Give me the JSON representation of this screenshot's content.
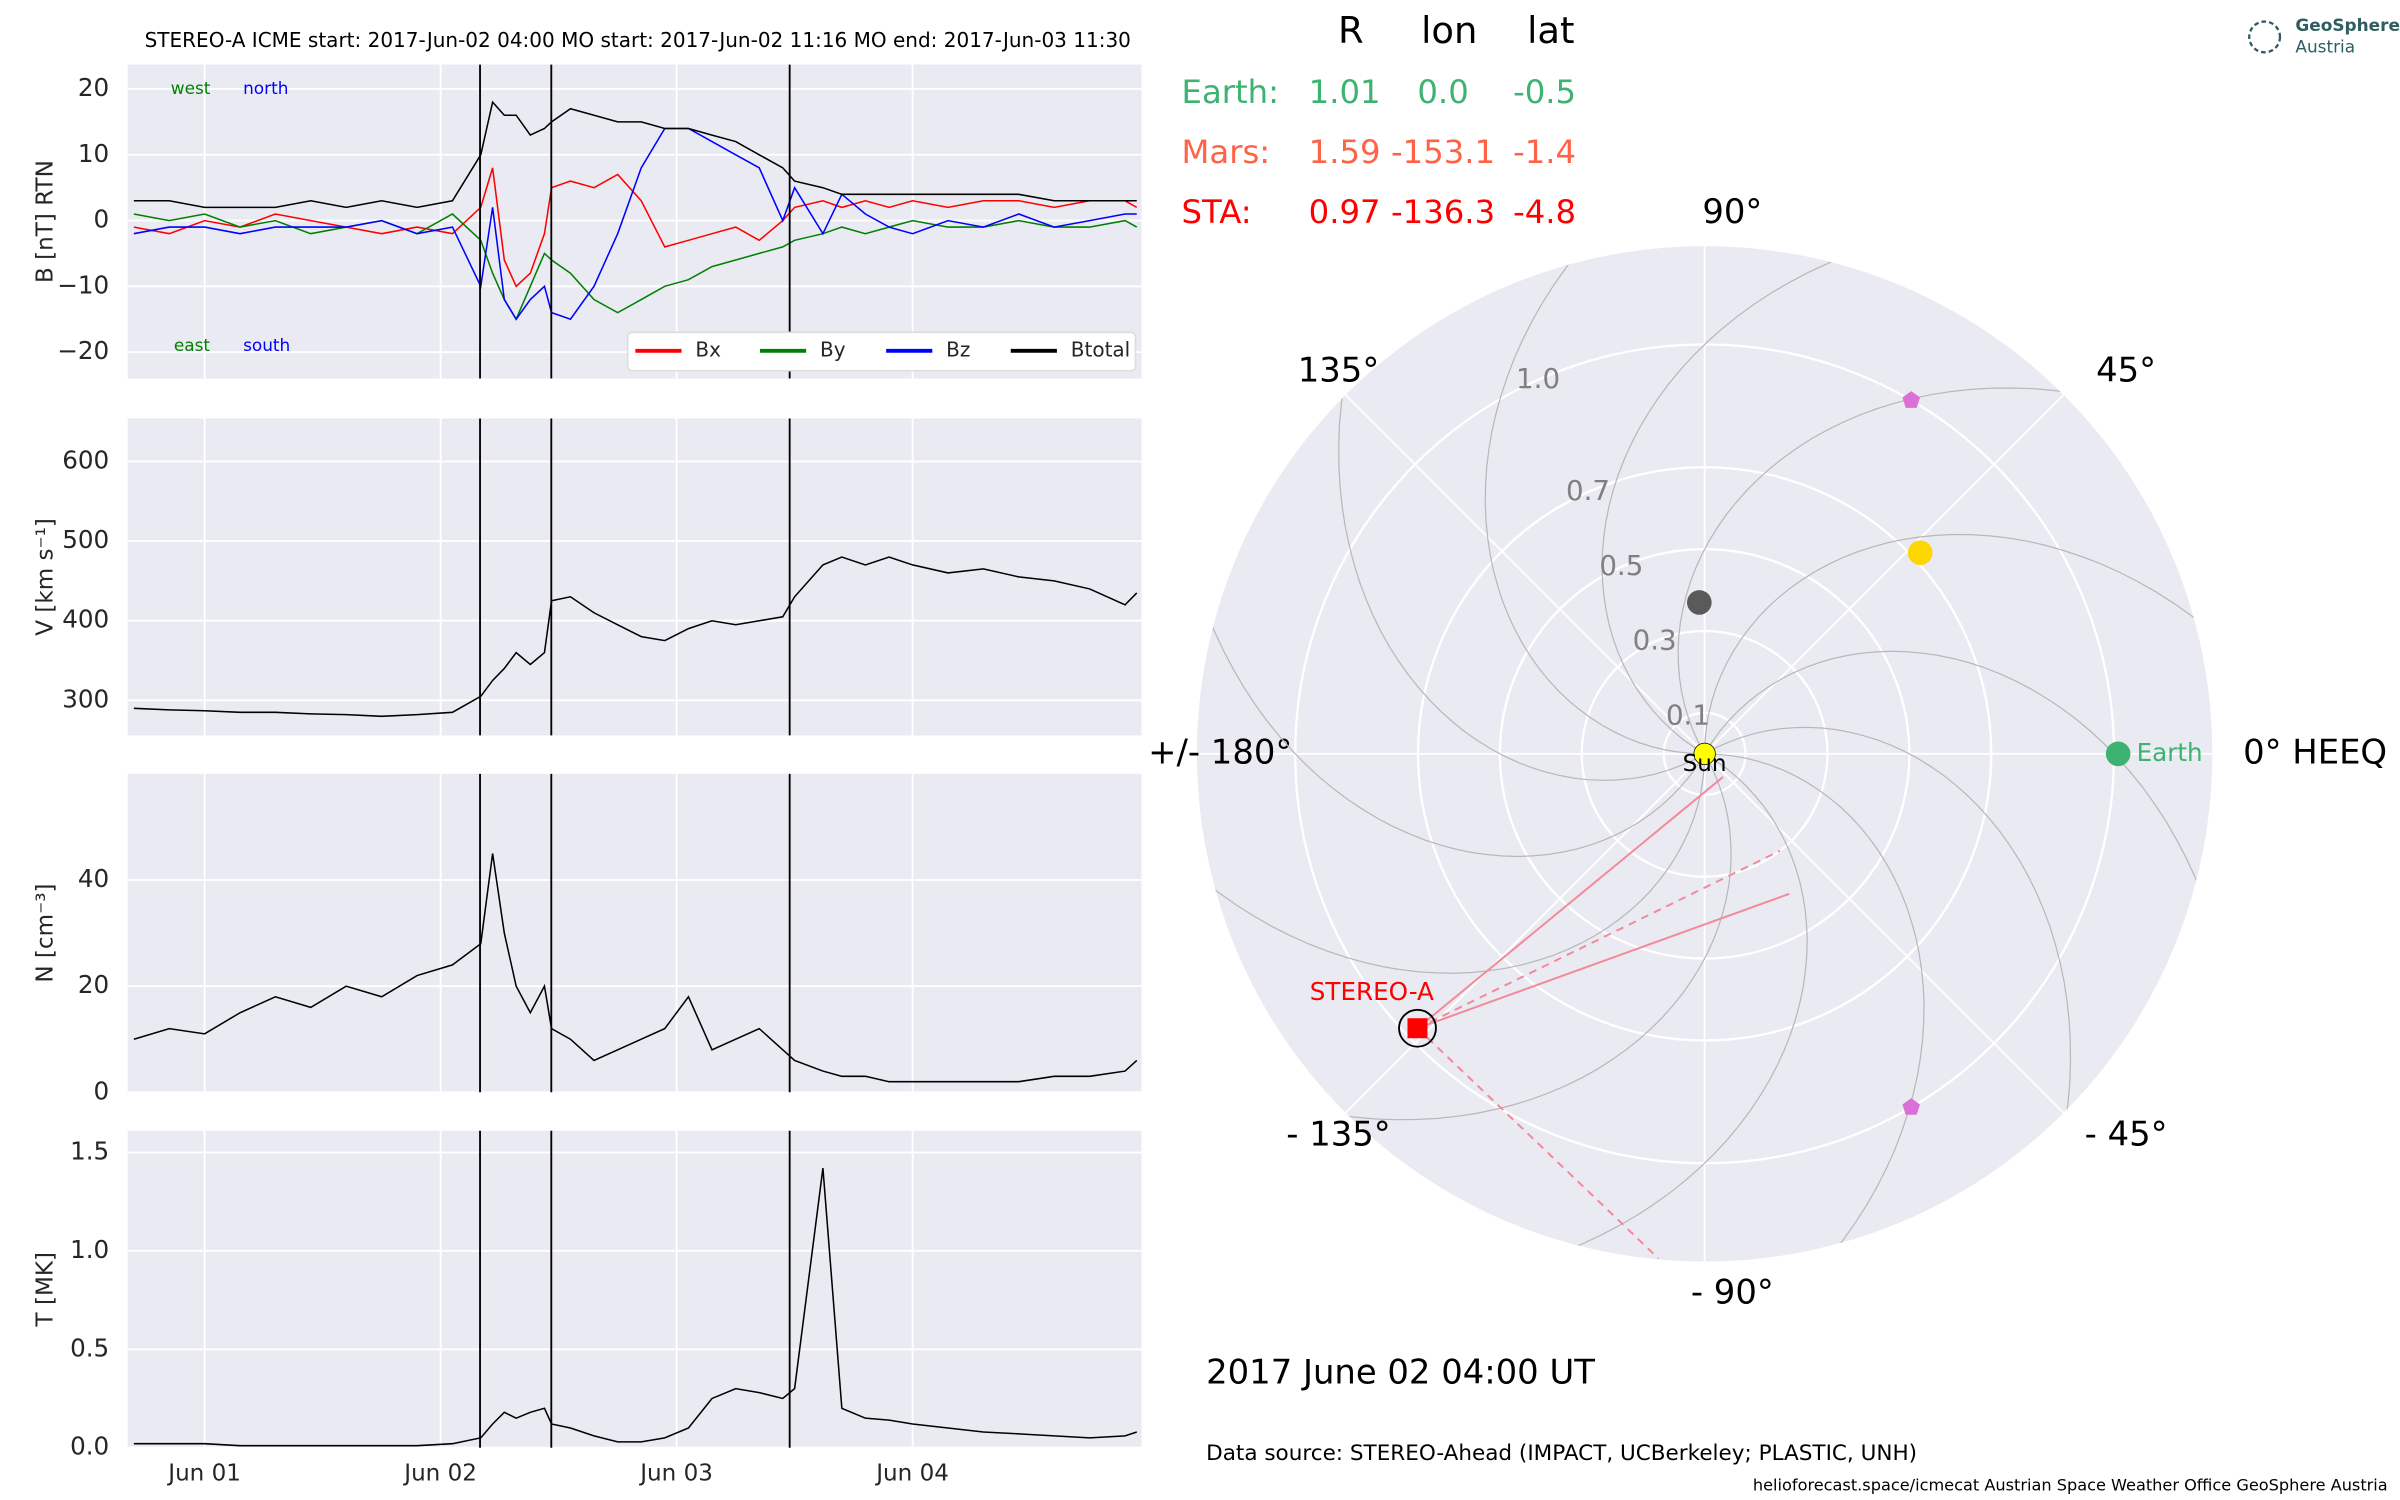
{
  "title": "STEREO-A    ICME start: 2017-Jun-02 04:00    MO start: 2017-Jun-02 11:16    MO end: 2017-Jun-03 11:30",
  "chart_data": [
    {
      "type": "line",
      "ylabel": "B [nT] RTN",
      "xlim": [
        0.674,
        4.97
      ],
      "xgrid": [
        1,
        2,
        3,
        4
      ],
      "ylim": [
        -24,
        23.7
      ],
      "yticks": [
        {
          "value": -20,
          "label": "−20"
        },
        {
          "value": -10,
          "label": "−10"
        },
        0,
        10,
        20
      ],
      "vlines": [
        2.167,
        2.469,
        3.479
      ],
      "x": [
        0.7,
        0.85,
        1.0,
        1.15,
        1.3,
        1.45,
        1.6,
        1.75,
        1.9,
        2.05,
        2.17,
        2.22,
        2.27,
        2.32,
        2.38,
        2.44,
        2.47,
        2.55,
        2.65,
        2.75,
        2.85,
        2.95,
        3.05,
        3.15,
        3.25,
        3.35,
        3.45,
        3.5,
        3.62,
        3.7,
        3.8,
        3.9,
        4.0,
        4.15,
        4.3,
        4.45,
        4.6,
        4.75,
        4.9,
        4.95
      ],
      "series": [
        {
          "name": "Bx",
          "color": "#ff0000",
          "values": [
            -1,
            -2,
            0,
            -1,
            1,
            0,
            -1,
            -2,
            -1,
            -2,
            2,
            8,
            -6,
            -10,
            -8,
            -2,
            5,
            6,
            5,
            7,
            3,
            -4,
            -3,
            -2,
            -1,
            -3,
            0,
            2,
            3,
            2,
            3,
            2,
            3,
            2,
            3,
            3,
            2,
            3,
            3,
            2
          ]
        },
        {
          "name": "By",
          "color": "#008000",
          "values": [
            1,
            0,
            1,
            -1,
            0,
            -2,
            -1,
            0,
            -2,
            1,
            -3,
            -8,
            -12,
            -15,
            -10,
            -5,
            -6,
            -8,
            -12,
            -14,
            -12,
            -10,
            -9,
            -7,
            -6,
            -5,
            -4,
            -3,
            -2,
            -1,
            -2,
            -1,
            0,
            -1,
            -1,
            0,
            -1,
            -1,
            0,
            -1
          ]
        },
        {
          "name": "Bz",
          "color": "#0000ff",
          "values": [
            -2,
            -1,
            -1,
            -2,
            -1,
            -1,
            -1,
            0,
            -2,
            -1,
            -10,
            2,
            -12,
            -15,
            -12,
            -10,
            -14,
            -15,
            -10,
            -2,
            8,
            14,
            14,
            12,
            10,
            8,
            0,
            5,
            -2,
            4,
            1,
            -1,
            -2,
            0,
            -1,
            1,
            -1,
            0,
            1,
            1
          ]
        },
        {
          "name": "Btotal",
          "color": "#000000",
          "values": [
            3,
            3,
            2,
            2,
            2,
            3,
            2,
            3,
            2,
            3,
            10,
            18,
            16,
            16,
            13,
            14,
            15,
            17,
            16,
            15,
            15,
            14,
            14,
            13,
            12,
            10,
            8,
            6,
            5,
            4,
            4,
            4,
            4,
            4,
            4,
            4,
            3,
            3,
            3,
            3
          ]
        }
      ],
      "legend": "lower right",
      "annotations": [
        {
          "text": "west",
          "color": "#008000"
        },
        {
          "text": "north",
          "color": "#0000ff"
        },
        {
          "text": "east",
          "color": "#008000"
        },
        {
          "text": "south",
          "color": "#0000ff"
        }
      ]
    },
    {
      "type": "line",
      "ylabel": "V [km s⁻¹]",
      "xlim": [
        0.674,
        4.97
      ],
      "xgrid": [
        1,
        2,
        3,
        4
      ],
      "ylim": [
        256,
        654
      ],
      "yticks": [
        300,
        400,
        500,
        600
      ],
      "vlines": [
        2.167,
        2.469,
        3.479
      ],
      "x": [
        0.7,
        0.85,
        1.0,
        1.15,
        1.3,
        1.45,
        1.6,
        1.75,
        1.9,
        2.05,
        2.17,
        2.22,
        2.27,
        2.32,
        2.38,
        2.44,
        2.47,
        2.55,
        2.65,
        2.75,
        2.85,
        2.95,
        3.05,
        3.15,
        3.25,
        3.35,
        3.45,
        3.5,
        3.62,
        3.7,
        3.8,
        3.9,
        4.0,
        4.15,
        4.3,
        4.45,
        4.6,
        4.75,
        4.9,
        4.95
      ],
      "series": [
        {
          "color": "#000000",
          "values": [
            290,
            288,
            287,
            285,
            285,
            283,
            282,
            280,
            282,
            285,
            305,
            325,
            340,
            360,
            345,
            360,
            425,
            430,
            410,
            395,
            380,
            375,
            390,
            400,
            395,
            400,
            405,
            430,
            470,
            480,
            470,
            480,
            470,
            460,
            465,
            455,
            450,
            440,
            420,
            435
          ]
        }
      ]
    },
    {
      "type": "line",
      "ylabel": "N [cm⁻³]",
      "xlim": [
        0.674,
        4.97
      ],
      "xgrid": [
        1,
        2,
        3,
        4
      ],
      "ylim": [
        0,
        60
      ],
      "yticks": [
        0,
        20,
        40
      ],
      "vlines": [
        2.167,
        2.469,
        3.479
      ],
      "x": [
        0.7,
        0.85,
        1.0,
        1.15,
        1.3,
        1.45,
        1.6,
        1.75,
        1.9,
        2.05,
        2.17,
        2.22,
        2.27,
        2.32,
        2.38,
        2.44,
        2.47,
        2.55,
        2.65,
        2.75,
        2.85,
        2.95,
        3.05,
        3.15,
        3.25,
        3.35,
        3.45,
        3.5,
        3.62,
        3.7,
        3.8,
        3.9,
        4.0,
        4.15,
        4.3,
        4.45,
        4.6,
        4.75,
        4.9,
        4.95
      ],
      "series": [
        {
          "color": "#000000",
          "values": [
            10,
            12,
            11,
            15,
            18,
            16,
            20,
            18,
            22,
            24,
            28,
            45,
            30,
            20,
            15,
            20,
            12,
            10,
            6,
            8,
            10,
            12,
            18,
            8,
            10,
            12,
            8,
            6,
            4,
            3,
            3,
            2,
            2,
            2,
            2,
            2,
            3,
            3,
            4,
            6
          ]
        }
      ]
    },
    {
      "type": "line",
      "ylabel": "T [MK]",
      "xlim": [
        0.674,
        4.97
      ],
      "xticks": [
        {
          "value": 1,
          "label": "Jun 01"
        },
        {
          "value": 2,
          "label": "Jun 02"
        },
        {
          "value": 3,
          "label": "Jun 03"
        },
        {
          "value": 4,
          "label": "Jun 04"
        }
      ],
      "ylim": [
        0,
        1.61
      ],
      "yticks": [
        {
          "value": 0,
          "label": "0.0"
        },
        0.5,
        {
          "value": 1,
          "label": "1.0"
        },
        1.5
      ],
      "vlines": [
        2.167,
        2.469,
        3.479
      ],
      "x": [
        0.7,
        0.85,
        1.0,
        1.15,
        1.3,
        1.45,
        1.6,
        1.75,
        1.9,
        2.05,
        2.17,
        2.22,
        2.27,
        2.32,
        2.38,
        2.44,
        2.47,
        2.55,
        2.65,
        2.75,
        2.85,
        2.95,
        3.05,
        3.15,
        3.25,
        3.35,
        3.45,
        3.5,
        3.62,
        3.7,
        3.8,
        3.9,
        4.0,
        4.15,
        4.3,
        4.45,
        4.6,
        4.75,
        4.9,
        4.95
      ],
      "series": [
        {
          "color": "#000000",
          "values": [
            0.02,
            0.02,
            0.02,
            0.01,
            0.01,
            0.01,
            0.01,
            0.01,
            0.01,
            0.02,
            0.05,
            0.12,
            0.18,
            0.15,
            0.18,
            0.2,
            0.12,
            0.1,
            0.06,
            0.03,
            0.03,
            0.05,
            0.1,
            0.25,
            0.3,
            0.28,
            0.25,
            0.3,
            1.42,
            0.2,
            0.15,
            0.14,
            0.12,
            0.1,
            0.08,
            0.07,
            0.06,
            0.05,
            0.06,
            0.08
          ]
        }
      ]
    },
    {
      "type": "polar",
      "rlim": [
        0,
        1.24
      ],
      "rticks": [
        0.1,
        0.3,
        0.5,
        0.7,
        {
          "value": 1,
          "label": "1.0"
        }
      ],
      "thetaticks": [
        {
          "value": 0,
          "label": "0° HEEQ"
        },
        {
          "value": 45,
          "label": "45°"
        },
        {
          "value": 90,
          "label": "90°"
        },
        {
          "value": 135,
          "label": "135°"
        },
        {
          "value": 180,
          "label": "+/- 180°"
        },
        {
          "value": -135,
          "label": "- 135°"
        },
        {
          "value": -90,
          "label": "- 90°"
        },
        {
          "value": -45,
          "label": "- 45°"
        }
      ],
      "bodies": [
        {
          "r": 0.37,
          "lon": 92,
          "color": "#5a5a5a",
          "marker": "circle"
        },
        {
          "r": 0.72,
          "lon": 43,
          "color": "#ffd700",
          "marker": "circle"
        },
        {
          "name": "Earth",
          "r": 1.01,
          "lon": 0.0,
          "color": "#3cb371",
          "marker": "circle"
        },
        {
          "name": "STEREO-A",
          "r": 0.97,
          "lon": -136.3,
          "color": "#ff0000",
          "marker": "square"
        },
        {
          "r": 1.0,
          "lon": 59.7,
          "color": "#da70d6",
          "marker": "pentagon"
        },
        {
          "r": 1.0,
          "lon": -59.7,
          "color": "#da70d6",
          "marker": "pentagon"
        },
        {
          "name": "Sun",
          "r": 0,
          "lon": 0,
          "color": "#ffff00",
          "marker": "circle"
        }
      ]
    }
  ],
  "positions": {
    "header": [
      "R",
      "lon",
      "lat"
    ],
    "rows": [
      {
        "name": "Earth:",
        "color": "#3cb371",
        "values": [
          "1.01",
          "0.0",
          "-0.5"
        ]
      },
      {
        "name": "Mars:",
        "color": "#ff6347",
        "values": [
          "1.59",
          "-153.1",
          "-1.4"
        ]
      },
      {
        "name": "STA:",
        "color": "#ff0000",
        "values": [
          "0.97",
          "-136.3",
          "-4.8"
        ]
      }
    ]
  },
  "date": "2017 June 02  04:00 UT",
  "source": "Data source: STEREO-Ahead (IMPACT, UCBerkeley; PLASTIC, UNH)",
  "footer": "helioforecast.space/icmecat   Austrian Space Weather Office   GeoSphere Austria",
  "logo": {
    "line1": "GeoSphere",
    "line2": "Austria"
  }
}
